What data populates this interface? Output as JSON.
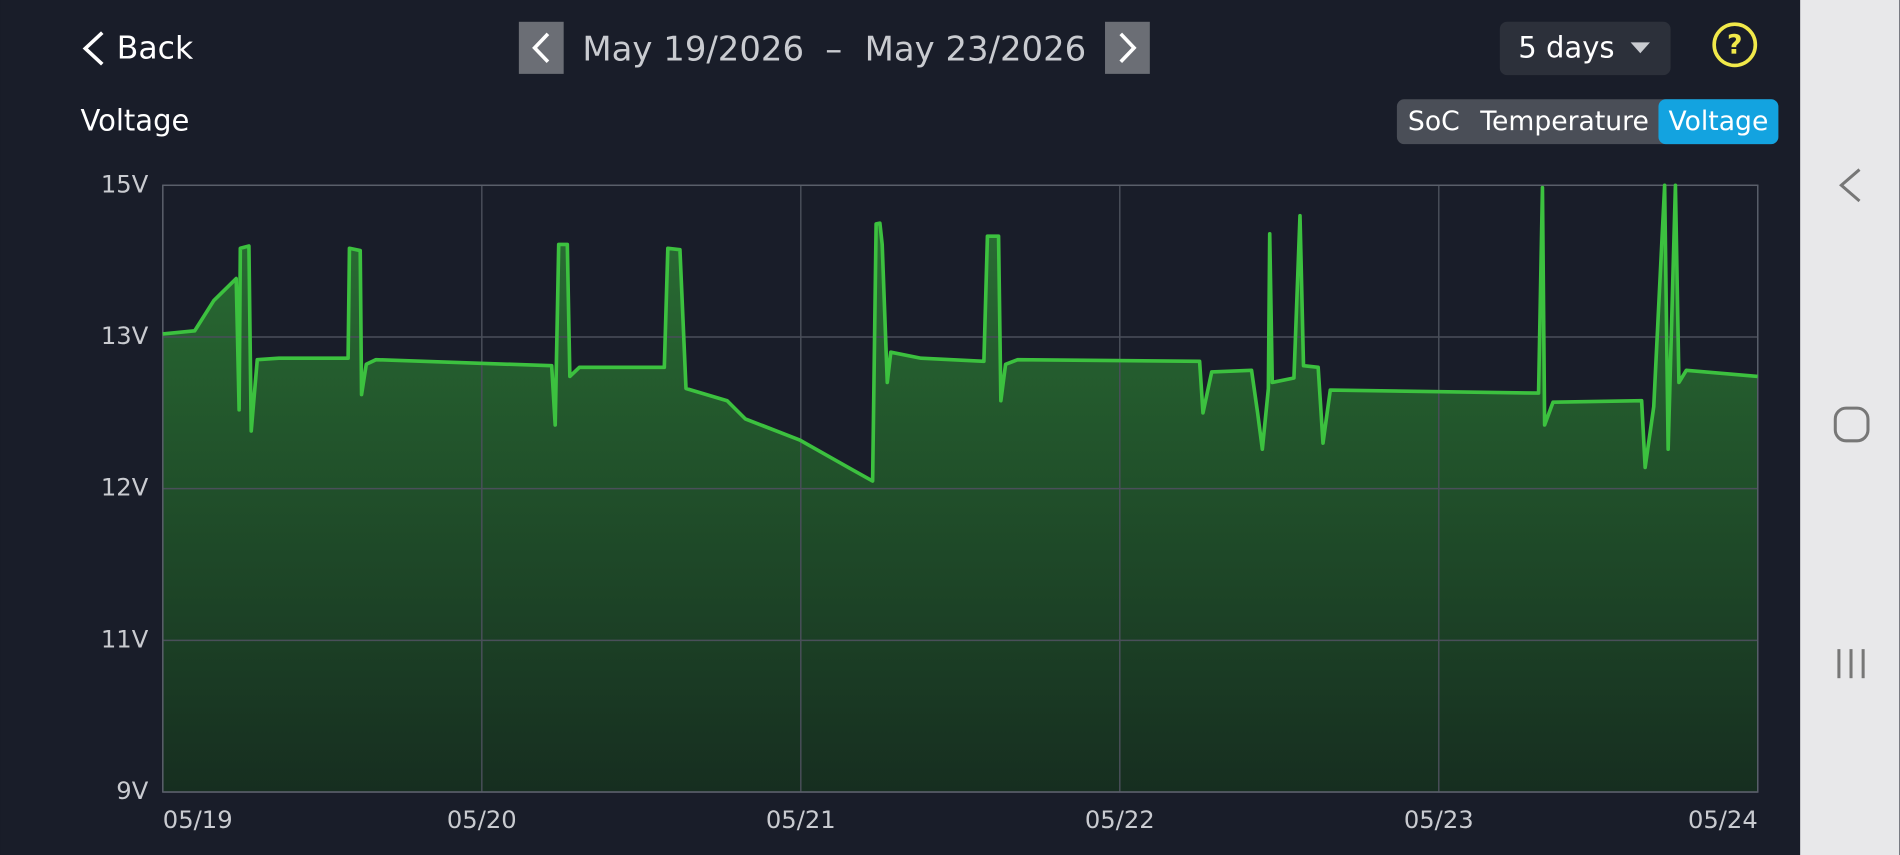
{
  "header": {
    "back": "Back",
    "date_start": "May 19/2026",
    "date_separator": "–",
    "date_end": "May 23/2026",
    "range": "5 days",
    "help": "?"
  },
  "tabs": [
    "SoC",
    "Temperature",
    "Voltage"
  ],
  "active_tab": 2,
  "chart_data": {
    "type": "line",
    "title": "Voltage",
    "color": "#3cc13f",
    "area": true,
    "grid": true,
    "x": [
      0.0,
      0.1,
      0.16,
      0.23,
      0.239,
      0.243,
      0.27,
      0.277,
      0.296,
      0.364,
      0.581,
      0.585,
      0.619,
      0.623,
      0.638,
      0.668,
      1.219,
      1.23,
      1.241,
      1.268,
      1.276,
      1.306,
      1.572,
      1.583,
      1.621,
      1.64,
      1.769,
      1.826,
      1.997,
      2.149,
      2.225,
      2.236,
      2.248,
      2.255,
      2.271,
      2.282,
      2.377,
      2.574,
      2.585,
      2.62,
      2.627,
      2.642,
      2.68,
      3.25,
      3.261,
      3.288,
      3.413,
      3.432,
      3.447,
      3.466,
      3.47,
      3.478,
      3.546,
      3.565,
      3.576,
      3.622,
      3.637,
      3.66,
      4.313,
      4.325,
      4.332,
      4.358,
      4.636,
      4.647,
      4.674,
      4.708,
      4.719,
      4.742,
      4.753,
      4.776,
      5.0
    ],
    "values": [
      13.04,
      13.08,
      13.48,
      13.77,
      12.52,
      14.17,
      14.2,
      12.38,
      12.85,
      12.86,
      12.86,
      14.17,
      14.14,
      12.62,
      12.82,
      12.85,
      12.81,
      12.42,
      14.22,
      14.22,
      12.74,
      12.8,
      12.8,
      14.17,
      14.15,
      12.66,
      12.58,
      12.46,
      12.32,
      12.14,
      12.05,
      14.49,
      14.5,
      14.22,
      12.7,
      12.9,
      12.86,
      12.84,
      14.33,
      14.33,
      12.58,
      12.82,
      12.85,
      12.84,
      12.5,
      12.77,
      12.78,
      12.5,
      12.26,
      12.66,
      14.36,
      12.7,
      12.73,
      14.6,
      12.81,
      12.8,
      12.3,
      12.65,
      12.63,
      14.97,
      12.42,
      12.57,
      12.58,
      12.14,
      12.54,
      15.0,
      12.26,
      15.0,
      12.7,
      12.78,
      12.74
    ],
    "xlim": [
      0,
      5
    ],
    "xticks": [
      {
        "value": 0,
        "label": "05/19"
      },
      {
        "value": 1,
        "label": "05/20"
      },
      {
        "value": 2,
        "label": "05/21"
      },
      {
        "value": 3,
        "label": "05/22"
      },
      {
        "value": 4,
        "label": "05/23"
      },
      {
        "value": 5,
        "label": "05/24"
      }
    ],
    "ylim": [
      9,
      15
    ],
    "yticks": [
      {
        "value": 9,
        "label": "9V"
      },
      {
        "value": 11,
        "label": "11V"
      },
      {
        "value": 12,
        "label": "12V"
      },
      {
        "value": 13,
        "label": "13V"
      },
      {
        "value": 15,
        "label": "15V"
      }
    ]
  }
}
